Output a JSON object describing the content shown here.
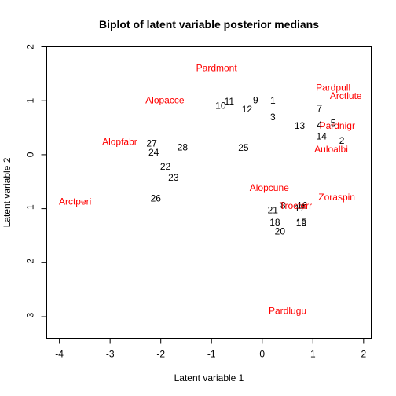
{
  "chart_data": {
    "type": "scatter",
    "title": "Biplot of latent variable posterior medians",
    "xlabel": "Latent variable 1",
    "ylabel": "Latent variable 2",
    "xlim": [
      -4.25,
      2.15
    ],
    "ylim": [
      -3.4,
      2.0
    ],
    "xticks": [
      "-4",
      "-3",
      "-2",
      "-1",
      "0",
      "1",
      "2"
    ],
    "xtick_values": [
      -4,
      -3,
      -2,
      -1,
      0,
      1,
      2
    ],
    "yticks": [
      "-3",
      "-2",
      "-1",
      "0",
      "1",
      "2"
    ],
    "ytick_values": [
      -3,
      -2,
      -1,
      0,
      1,
      2
    ],
    "grid": false,
    "colors": {
      "sites": "#000000",
      "species": "#ff0000"
    },
    "sites": [
      {
        "label": "1",
        "x": 0.21,
        "y": 1.0
      },
      {
        "label": "2",
        "x": 1.57,
        "y": 0.26
      },
      {
        "label": "3",
        "x": 0.21,
        "y": 0.7
      },
      {
        "label": "4",
        "x": 1.13,
        "y": 0.55
      },
      {
        "label": "5",
        "x": 1.4,
        "y": 0.59
      },
      {
        "label": "7",
        "x": 1.13,
        "y": 0.86
      },
      {
        "label": "8",
        "x": 0.41,
        "y": -0.94
      },
      {
        "label": "9",
        "x": -0.13,
        "y": 1.01
      },
      {
        "label": "10",
        "x": -0.82,
        "y": 0.91
      },
      {
        "label": "11",
        "x": -0.65,
        "y": 0.99
      },
      {
        "label": "12",
        "x": -0.3,
        "y": 0.84
      },
      {
        "label": "13",
        "x": 0.74,
        "y": 0.54
      },
      {
        "label": "14",
        "x": 1.17,
        "y": 0.34
      },
      {
        "label": "15",
        "x": 0.77,
        "y": -1.25
      },
      {
        "label": "16",
        "x": 0.79,
        "y": -0.94
      },
      {
        "label": "17",
        "x": 0.74,
        "y": -0.99
      },
      {
        "label": "18",
        "x": 0.25,
        "y": -1.25
      },
      {
        "label": "19",
        "x": 0.77,
        "y": -1.27
      },
      {
        "label": "20",
        "x": 0.35,
        "y": -1.42
      },
      {
        "label": "21",
        "x": 0.21,
        "y": -1.03
      },
      {
        "label": "22",
        "x": -1.91,
        "y": -0.22
      },
      {
        "label": "23",
        "x": -1.75,
        "y": -0.42
      },
      {
        "label": "24",
        "x": -2.14,
        "y": 0.04
      },
      {
        "label": "25",
        "x": -0.37,
        "y": 0.13
      },
      {
        "label": "26",
        "x": -2.1,
        "y": -0.81
      },
      {
        "label": "27",
        "x": -2.18,
        "y": 0.21
      },
      {
        "label": "28",
        "x": -1.57,
        "y": 0.14
      }
    ],
    "species": [
      {
        "label": "Pardmont",
        "x": -0.9,
        "y": 1.61
      },
      {
        "label": "Pardpull",
        "x": 1.4,
        "y": 1.24
      },
      {
        "label": "Arctlute",
        "x": 1.65,
        "y": 1.09
      },
      {
        "label": "Alopacce",
        "x": -1.92,
        "y": 1.01
      },
      {
        "label": "Pardnigr",
        "x": 1.48,
        "y": 0.54
      },
      {
        "label": "Alopfabr",
        "x": -2.81,
        "y": 0.24
      },
      {
        "label": "Auloalbi",
        "x": 1.36,
        "y": 0.1
      },
      {
        "label": "Alopcune",
        "x": 0.14,
        "y": -0.61
      },
      {
        "label": "Zoraspin",
        "x": 1.47,
        "y": -0.79
      },
      {
        "label": "Arctperi",
        "x": -3.69,
        "y": -0.87
      },
      {
        "label": "Trocterr",
        "x": 0.66,
        "y": -0.95
      },
      {
        "label": "Pardlugu",
        "x": 0.5,
        "y": -2.89
      }
    ]
  }
}
